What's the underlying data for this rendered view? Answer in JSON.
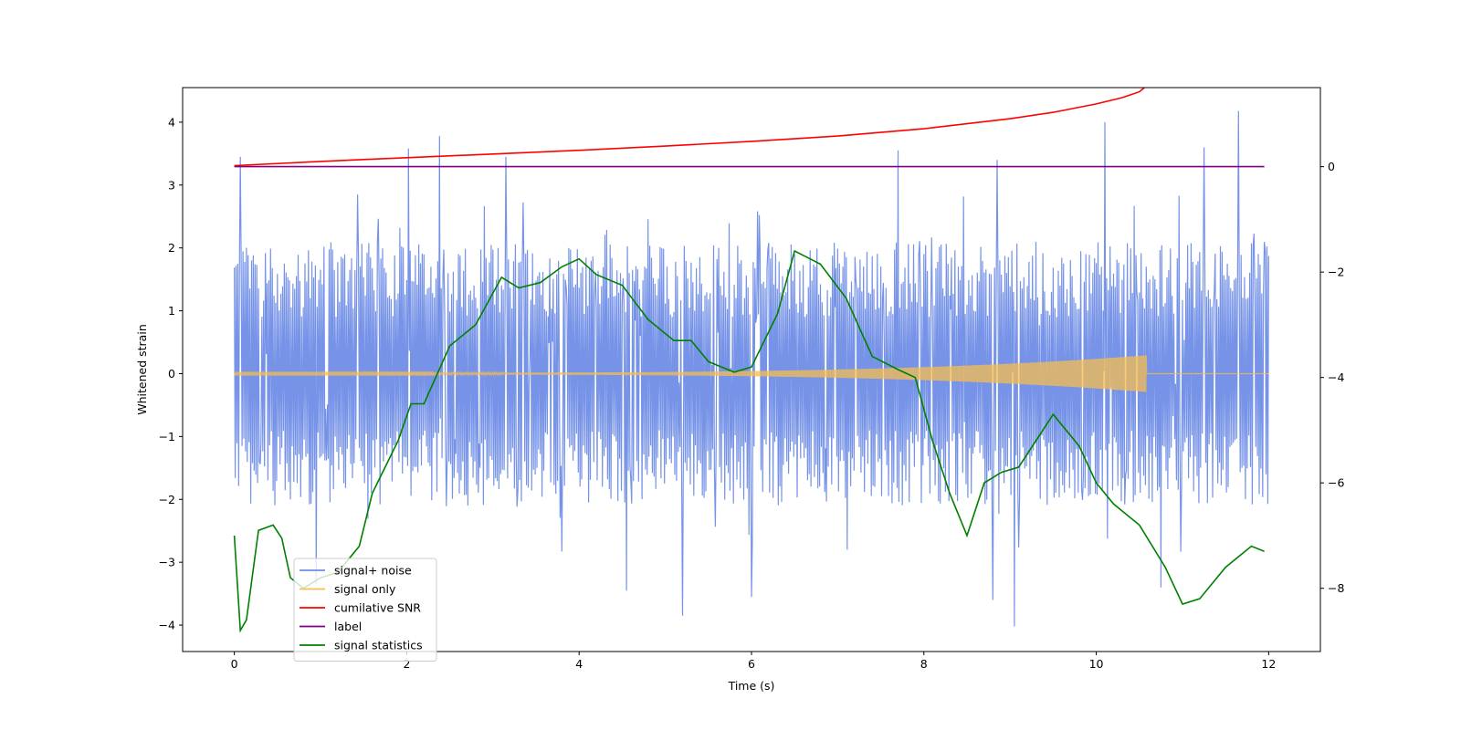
{
  "chart_data": {
    "type": "line",
    "title": "",
    "xlabel": "Time (s)",
    "ylabel": "Whitened strain",
    "y2label": "",
    "xlim": [
      -0.6,
      12.6
    ],
    "ylim": [
      -4.42,
      4.55
    ],
    "y2lim": [
      -9.2,
      1.5
    ],
    "xticks": [
      0,
      2,
      4,
      6,
      8,
      10,
      12
    ],
    "yticks": [
      -4,
      -3,
      -2,
      -1,
      0,
      1,
      2,
      3,
      4
    ],
    "y2ticks": [
      -8,
      -6,
      -4,
      -2,
      0
    ],
    "grid": false,
    "legend_position": "lower-left",
    "series": [
      {
        "name": "signal+ noise",
        "axis": "left",
        "color": "#6f8de6",
        "style": "noise band",
        "sample_rate_hz": 100,
        "duration_s": 12,
        "band_lower": -2.1,
        "band_upper": 2.1,
        "spikes": [
          [
            0.07,
            3.45
          ],
          [
            2.02,
            3.58
          ],
          [
            2.38,
            3.78
          ],
          [
            3.15,
            3.45
          ],
          [
            7.7,
            3.55
          ],
          [
            8.85,
            3.4
          ],
          [
            10.1,
            4.0
          ],
          [
            11.25,
            3.6
          ],
          [
            11.65,
            4.18
          ],
          [
            0.95,
            -3.35
          ],
          [
            4.55,
            -3.45
          ],
          [
            5.2,
            -3.85
          ],
          [
            6.0,
            -3.55
          ],
          [
            8.8,
            -3.6
          ],
          [
            9.05,
            -4.02
          ],
          [
            10.75,
            -3.4
          ]
        ]
      },
      {
        "name": "signal only",
        "axis": "left",
        "color": "#f5bc50",
        "style": "chirp",
        "start_s": 0,
        "merger_s": 10.58,
        "end_s": 12,
        "peak_amplitude": 0.28
      },
      {
        "name": "cumilative SNR",
        "axis": "right",
        "color": "#ff0000",
        "x": [
          0,
          1,
          2,
          3,
          4,
          5,
          6,
          7,
          8,
          9,
          9.5,
          10,
          10.3,
          10.5,
          10.58,
          12
        ],
        "y": [
          0.02,
          0.1,
          0.17,
          0.24,
          0.31,
          0.39,
          0.48,
          0.58,
          0.72,
          0.91,
          1.03,
          1.19,
          1.31,
          1.42,
          1.53,
          1.53
        ]
      },
      {
        "name": "label",
        "axis": "right",
        "color": "#800080",
        "x": [
          0,
          11.95
        ],
        "y": [
          0,
          0
        ]
      },
      {
        "name": "signal statistics",
        "axis": "right",
        "color": "#008000",
        "x": [
          0,
          0.07,
          0.14,
          0.28,
          0.45,
          0.55,
          0.65,
          0.8,
          1.0,
          1.2,
          1.45,
          1.6,
          1.75,
          1.9,
          2.05,
          2.2,
          2.5,
          2.8,
          3.1,
          3.3,
          3.55,
          3.8,
          4.0,
          4.2,
          4.5,
          4.8,
          5.1,
          5.3,
          5.5,
          5.8,
          6.0,
          6.3,
          6.5,
          6.8,
          7.1,
          7.4,
          7.7,
          7.9,
          8.1,
          8.3,
          8.5,
          8.7,
          8.9,
          9.1,
          9.3,
          9.5,
          9.8,
          10.0,
          10.2,
          10.5,
          10.8,
          11.0,
          11.2,
          11.5,
          11.8,
          11.95
        ],
        "y": [
          -7.0,
          -8.8,
          -8.6,
          -6.9,
          -6.8,
          -7.05,
          -7.8,
          -8.0,
          -7.8,
          -7.7,
          -7.2,
          -6.2,
          -5.7,
          -5.2,
          -4.5,
          -4.5,
          -3.4,
          -3.0,
          -2.1,
          -2.3,
          -2.2,
          -1.9,
          -1.75,
          -2.05,
          -2.25,
          -2.9,
          -3.3,
          -3.3,
          -3.7,
          -3.9,
          -3.8,
          -2.8,
          -1.6,
          -1.85,
          -2.5,
          -3.6,
          -3.85,
          -4.0,
          -5.2,
          -6.2,
          -7.0,
          -6.0,
          -5.8,
          -5.7,
          -5.2,
          -4.7,
          -5.3,
          -6.0,
          -6.4,
          -6.8,
          -7.6,
          -8.3,
          -8.2,
          -7.6,
          -7.2,
          -7.3
        ]
      }
    ]
  }
}
